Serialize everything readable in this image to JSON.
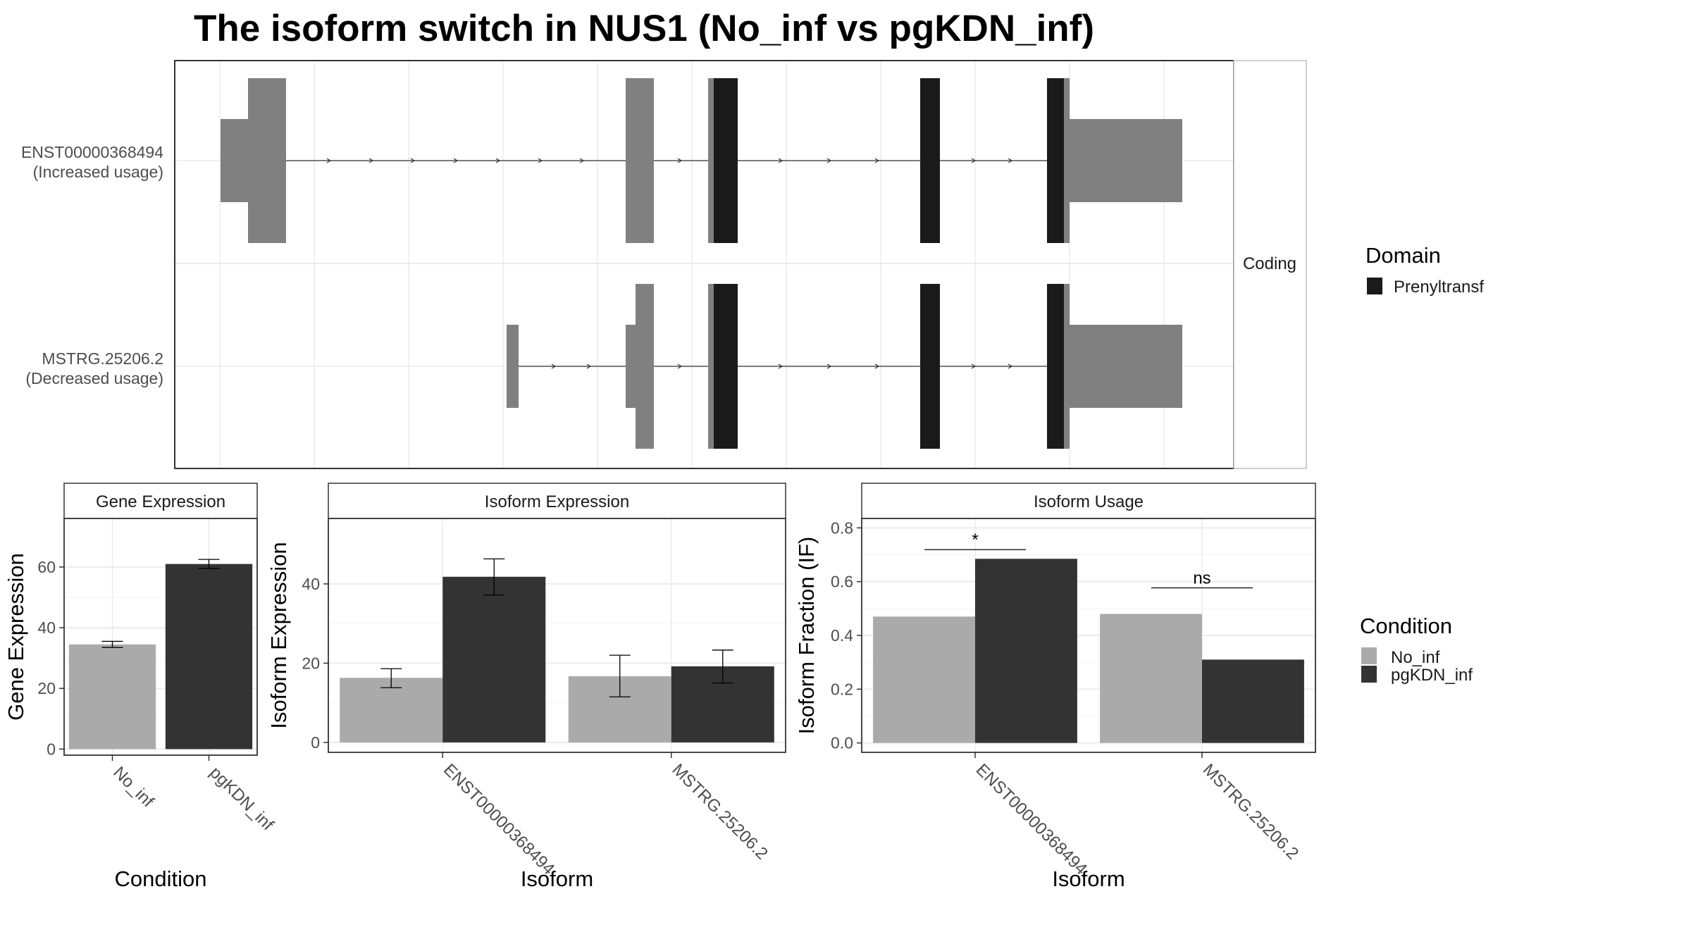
{
  "title": "The isoform switch in NUS1 (No_inf vs pgKDN_inf)",
  "colors": {
    "no_inf": "#aaaaaa",
    "pgkdn_inf": "#333333",
    "domain": "#1a1a1a",
    "exon": "#808080",
    "grid": "#ebebeb",
    "panel_border": "#333333"
  },
  "chart_data": [
    {
      "type": "gene-structure",
      "transcripts": [
        {
          "id": "ENST00000368494",
          "annotation": "(Increased usage)"
        },
        {
          "id": "MSTRG.25206.2",
          "annotation": "(Decreased usage)"
        }
      ],
      "facet_label": "Coding",
      "legend_title": "Domain",
      "legend_items": [
        {
          "label": "Prenyltransf"
        }
      ]
    },
    {
      "type": "bar",
      "strip": "Gene Expression",
      "xlabel": "Condition",
      "ylabel": "Gene Expression",
      "categories": [
        "No_inf",
        "pgKDN_inf"
      ],
      "values": [
        34.5,
        61.0
      ],
      "error_low": [
        33.5,
        59.5
      ],
      "error_high": [
        35.5,
        62.5
      ],
      "ylim": [
        -2,
        76
      ],
      "yticks": [
        0,
        20,
        40,
        60
      ]
    },
    {
      "type": "bar",
      "strip": "Isoform Expression",
      "xlabel": "Isoform",
      "ylabel": "Isoform Expression",
      "categories": [
        "ENST00000368494",
        "MSTRG.25206.2"
      ],
      "series": [
        {
          "name": "No_inf",
          "values": [
            16.3,
            16.7
          ],
          "error_low": [
            13.8,
            11.5
          ],
          "error_high": [
            18.6,
            22.0
          ]
        },
        {
          "name": "pgKDN_inf",
          "values": [
            41.8,
            19.2
          ],
          "error_low": [
            37.2,
            15.0
          ],
          "error_high": [
            46.3,
            23.3
          ]
        }
      ],
      "ylim": [
        -2.5,
        56.5
      ],
      "yticks": [
        0,
        20,
        40
      ]
    },
    {
      "type": "bar",
      "strip": "Isoform Usage",
      "xlabel": "Isoform",
      "ylabel": "Isoform Fraction (IF)",
      "categories": [
        "ENST00000368494",
        "MSTRG.25206.2"
      ],
      "series": [
        {
          "name": "No_inf",
          "values": [
            0.47,
            0.48
          ]
        },
        {
          "name": "pgKDN_inf",
          "values": [
            0.685,
            0.31
          ]
        }
      ],
      "significance": [
        "*",
        "ns"
      ],
      "ylim": [
        -0.035,
        0.835
      ],
      "yticks": [
        "0.0",
        "0.2",
        "0.4",
        "0.6",
        "0.8"
      ]
    }
  ],
  "condition_legend": {
    "title": "Condition",
    "items": [
      {
        "label": "No_inf"
      },
      {
        "label": "pgKDN_inf"
      }
    ]
  }
}
